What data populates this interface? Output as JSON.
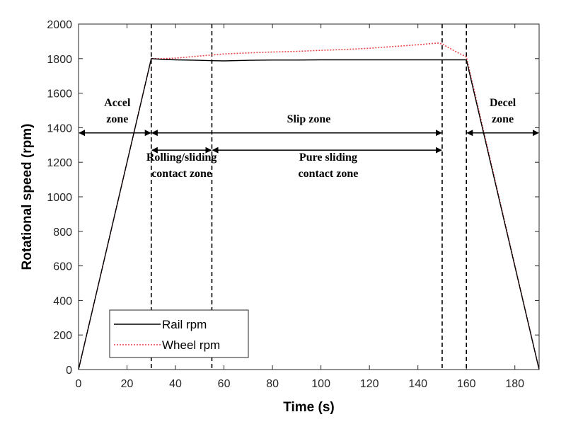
{
  "chart_data": {
    "type": "line",
    "xlabel": "Time (s)",
    "ylabel": "Rotational speed (rpm)",
    "xlim": [
      0,
      190
    ],
    "ylim": [
      0,
      2000
    ],
    "xticks": [
      0,
      20,
      40,
      60,
      80,
      100,
      120,
      140,
      160,
      180
    ],
    "yticks": [
      0,
      200,
      400,
      600,
      800,
      1000,
      1200,
      1400,
      1600,
      1800,
      2000
    ],
    "grid": false,
    "legend_position": "bottom-left",
    "series": [
      {
        "name": "Rail rpm",
        "color": "#000000",
        "style": "solid",
        "points": [
          [
            0,
            0
          ],
          [
            30,
            1800
          ],
          [
            35,
            1795
          ],
          [
            40,
            1793
          ],
          [
            50,
            1790
          ],
          [
            55,
            1788
          ],
          [
            60,
            1787
          ],
          [
            70,
            1790
          ],
          [
            80,
            1792
          ],
          [
            90,
            1792
          ],
          [
            100,
            1793
          ],
          [
            120,
            1793
          ],
          [
            140,
            1793
          ],
          [
            150,
            1793
          ],
          [
            160,
            1793
          ],
          [
            190,
            0
          ]
        ]
      },
      {
        "name": "Wheel rpm",
        "color": "#e8474c",
        "style": "dotted",
        "points": [
          [
            0,
            0
          ],
          [
            30,
            1800
          ],
          [
            35,
            1800
          ],
          [
            40,
            1803
          ],
          [
            50,
            1815
          ],
          [
            60,
            1827
          ],
          [
            70,
            1833
          ],
          [
            80,
            1838
          ],
          [
            90,
            1842
          ],
          [
            100,
            1848
          ],
          [
            110,
            1853
          ],
          [
            120,
            1860
          ],
          [
            130,
            1870
          ],
          [
            140,
            1880
          ],
          [
            148,
            1890
          ],
          [
            150,
            1885
          ],
          [
            155,
            1845
          ],
          [
            160,
            1810
          ],
          [
            190,
            0
          ]
        ]
      }
    ],
    "vertical_markers": [
      30,
      55,
      150,
      160
    ],
    "annotations": [
      {
        "lines": [
          "Accel",
          "zone"
        ],
        "x": 16,
        "y": [
          1525,
          1430
        ]
      },
      {
        "lines": [
          "Slip zone"
        ],
        "x": 95,
        "y": [
          1430
        ]
      },
      {
        "lines": [
          "Decel",
          "zone"
        ],
        "x": 175,
        "y": [
          1525,
          1430
        ]
      },
      {
        "lines": [
          "Rolling/sliding",
          "contact zone"
        ],
        "x": 42.5,
        "y": [
          1210,
          1115
        ]
      },
      {
        "lines": [
          "Pure sliding",
          "contact zone"
        ],
        "x": 103,
        "y": [
          1210,
          1115
        ]
      }
    ],
    "arrows": [
      {
        "from": 0,
        "to": 30,
        "y": 1370
      },
      {
        "from": 30,
        "to": 150,
        "y": 1370
      },
      {
        "from": 160,
        "to": 190,
        "y": 1370
      },
      {
        "from": 30,
        "to": 55,
        "y": 1270
      },
      {
        "from": 55,
        "to": 150,
        "y": 1270
      }
    ],
    "legend": {
      "items": [
        {
          "label": "Rail rpm",
          "color": "#000000",
          "style": "solid"
        },
        {
          "label": "Wheel rpm",
          "color": "#e8474c",
          "style": "dotted"
        }
      ]
    }
  }
}
